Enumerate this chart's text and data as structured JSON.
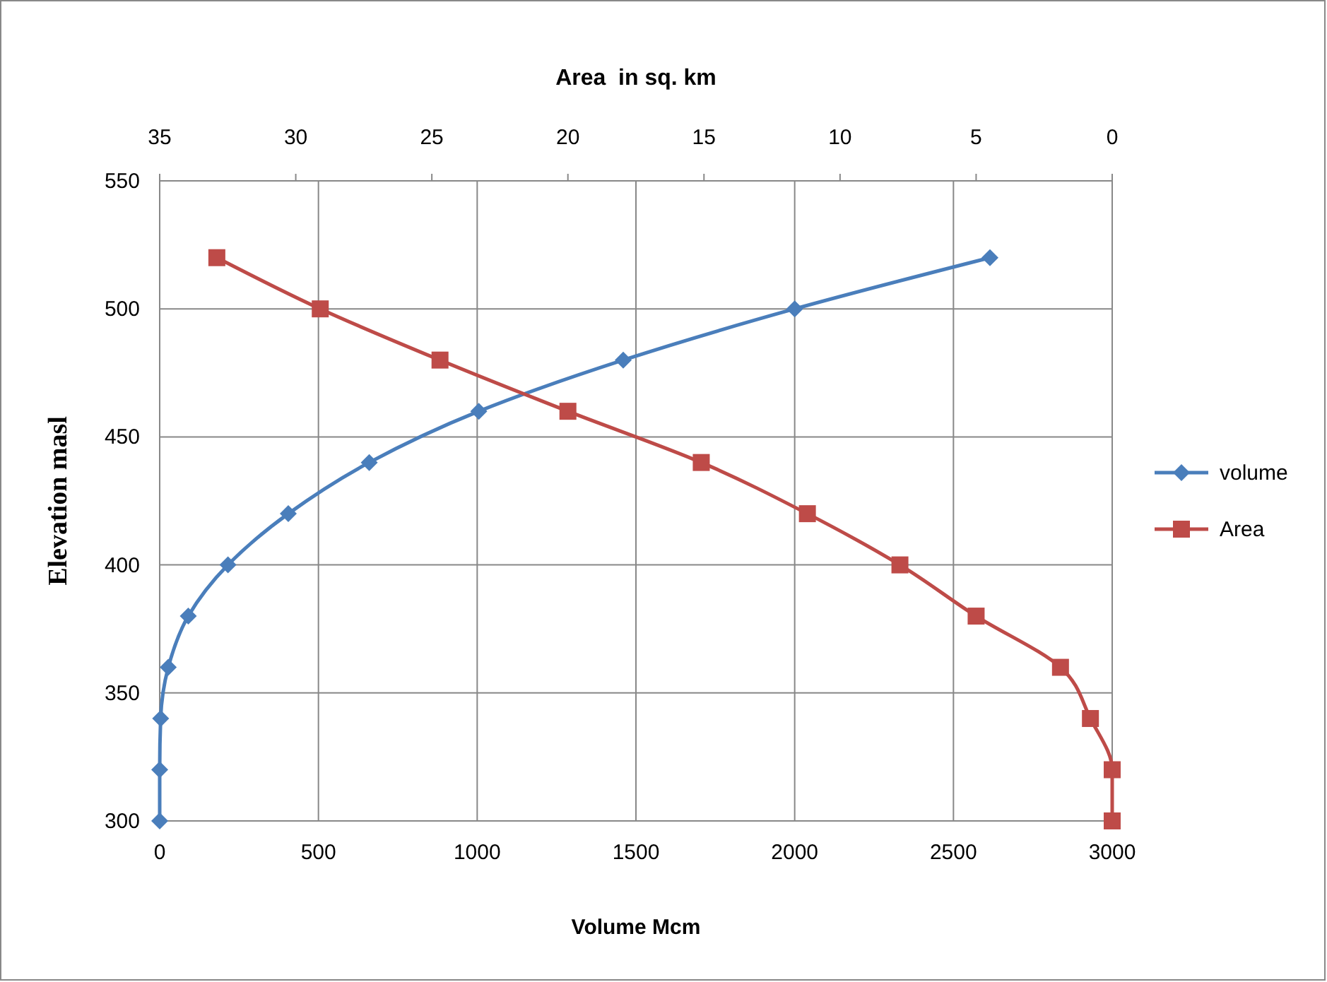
{
  "chart_data": {
    "type": "line",
    "xlabel": "Volume Mcm",
    "ylabel": "Elevation masl",
    "x2label": "Area  in sq. km",
    "xlim": [
      0,
      3000
    ],
    "xticks": [
      0,
      500,
      1000,
      1500,
      2000,
      2500,
      3000
    ],
    "x2lim": [
      35,
      0
    ],
    "x2ticks": [
      35,
      30,
      25,
      20,
      15,
      10,
      5,
      0
    ],
    "ylim": [
      300,
      550
    ],
    "yticks": [
      300,
      350,
      400,
      450,
      500,
      550
    ],
    "grid": true,
    "legend": "right",
    "series": [
      {
        "name": "volume",
        "color": "#4a7ebb",
        "marker": "diamond",
        "x": [
          0,
          0,
          3,
          27,
          90,
          215,
          405,
          660,
          1005,
          1460,
          2000,
          2615
        ],
        "values": [
          300,
          320,
          340,
          360,
          380,
          400,
          420,
          440,
          460,
          480,
          500,
          520
        ]
      },
      {
        "name": "Area",
        "color": "#be4b48",
        "marker": "square",
        "axis": "x2",
        "x": [
          0,
          0,
          0.8,
          1.9,
          5.0,
          7.8,
          11.2,
          15.1,
          20.0,
          24.7,
          29.1,
          32.9
        ],
        "values": [
          300,
          320,
          340,
          360,
          380,
          400,
          420,
          440,
          460,
          480,
          500,
          520
        ]
      }
    ]
  }
}
